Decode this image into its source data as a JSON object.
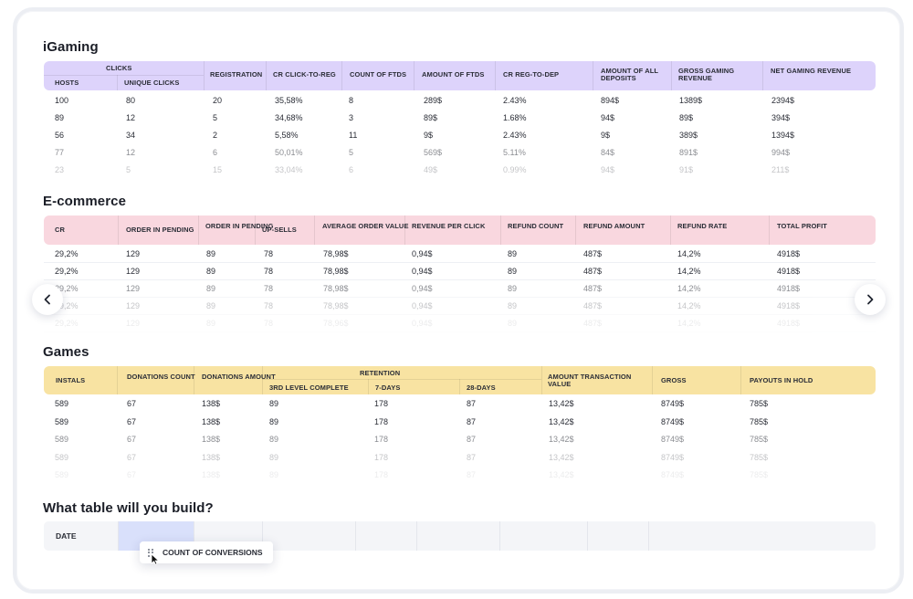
{
  "igaming": {
    "title": "iGaming",
    "group_header": "CLICKS",
    "headers": [
      "HOSTS",
      "UNIQUE CLICKS",
      "REGISTRATION",
      "CR CLICK-TO-REG",
      "COUNT OF FTDS",
      "AMOUNT OF FTDS",
      "CR REG-TO-DEP",
      "AMOUNT OF ALL DEPOSITS",
      "GROSS GAMING REVENUE",
      "NET GAMING REVENUE"
    ],
    "rows": [
      [
        "100",
        "80",
        "20",
        "35,58%",
        "8",
        "289$",
        "2.43%",
        "894$",
        "1389$",
        "2394$"
      ],
      [
        "89",
        "12",
        "5",
        "34,68%",
        "3",
        "89$",
        "1.68%",
        "94$",
        "89$",
        "394$"
      ],
      [
        "56",
        "34",
        "2",
        "5,58%",
        "11",
        "9$",
        "2.43%",
        "9$",
        "389$",
        "1394$"
      ],
      [
        "77",
        "12",
        "6",
        "50,01%",
        "5",
        "569$",
        "5.11%",
        "84$",
        "891$",
        "994$"
      ],
      [
        "23",
        "5",
        "15",
        "33,04%",
        "6",
        "49$",
        "0.99%",
        "94$",
        "91$",
        "211$"
      ]
    ]
  },
  "ecommerce": {
    "title": "E-commerce",
    "headers": [
      "CR",
      "ORDER IN PENDING",
      "ORDER IN PENDING",
      "UP-SELLS",
      "AVERAGE ORDER VALUE",
      "REVENUE PER CLICK",
      "REFUND COUNT",
      "REFUND AMOUNT",
      "REFUND RATE",
      "TOTAL PROFIT"
    ],
    "rows": [
      [
        "29,2%",
        "129",
        "89",
        "78",
        "78,98$",
        "0,94$",
        "89",
        "487$",
        "14,2%",
        "4918$"
      ],
      [
        "29,2%",
        "129",
        "89",
        "78",
        "78,98$",
        "0,94$",
        "89",
        "487$",
        "14,2%",
        "4918$"
      ],
      [
        "29,2%",
        "129",
        "89",
        "78",
        "78,98$",
        "0,94$",
        "89",
        "487$",
        "14,2%",
        "4918$"
      ],
      [
        "29,2%",
        "129",
        "89",
        "78",
        "78,98$",
        "0,94$",
        "89",
        "487$",
        "14,2%",
        "4918$"
      ],
      [
        "29,2%",
        "129",
        "89",
        "78",
        "78,96$",
        "0,94$",
        "89",
        "487$",
        "14,2%",
        "4918$"
      ]
    ]
  },
  "games": {
    "title": "Games",
    "group_header": "RETENTION",
    "headers": [
      "INSTALS",
      "DONATIONS COUNT",
      "DONATIONS AMOUNT",
      "3RD LEVEL COMPLETE",
      "7-DAYS",
      "28-DAYS",
      "AMOUNT TRANSACTION VALUE",
      "GROSS",
      "PAYOUTS IN HOLD"
    ],
    "rows": [
      [
        "589",
        "67",
        "138$",
        "89",
        "178",
        "87",
        "13,42$",
        "8749$",
        "785$"
      ],
      [
        "589",
        "67",
        "138$",
        "89",
        "178",
        "87",
        "13,42$",
        "8749$",
        "785$"
      ],
      [
        "589",
        "67",
        "138$",
        "89",
        "178",
        "87",
        "13,42$",
        "8749$",
        "785$"
      ],
      [
        "589",
        "67",
        "138$",
        "89",
        "178",
        "87",
        "13,42$",
        "8749$",
        "785$"
      ],
      [
        "589",
        "67",
        "138$",
        "89",
        "178",
        "87",
        "13,42$",
        "8749$",
        "785$"
      ]
    ]
  },
  "builder": {
    "title": "What table will you build?",
    "first_column": "DATE",
    "dragged_chip": "COUNT OF CONVERSIONS"
  },
  "nav": {
    "prev_icon": "chevron-left-icon",
    "next_icon": "chevron-right-icon"
  },
  "colors": {
    "igaming_header": "#ddd3fb",
    "ecommerce_header": "#f9d7df",
    "games_header": "#f8e3a2",
    "drop_zone": "#d9e0fb"
  }
}
